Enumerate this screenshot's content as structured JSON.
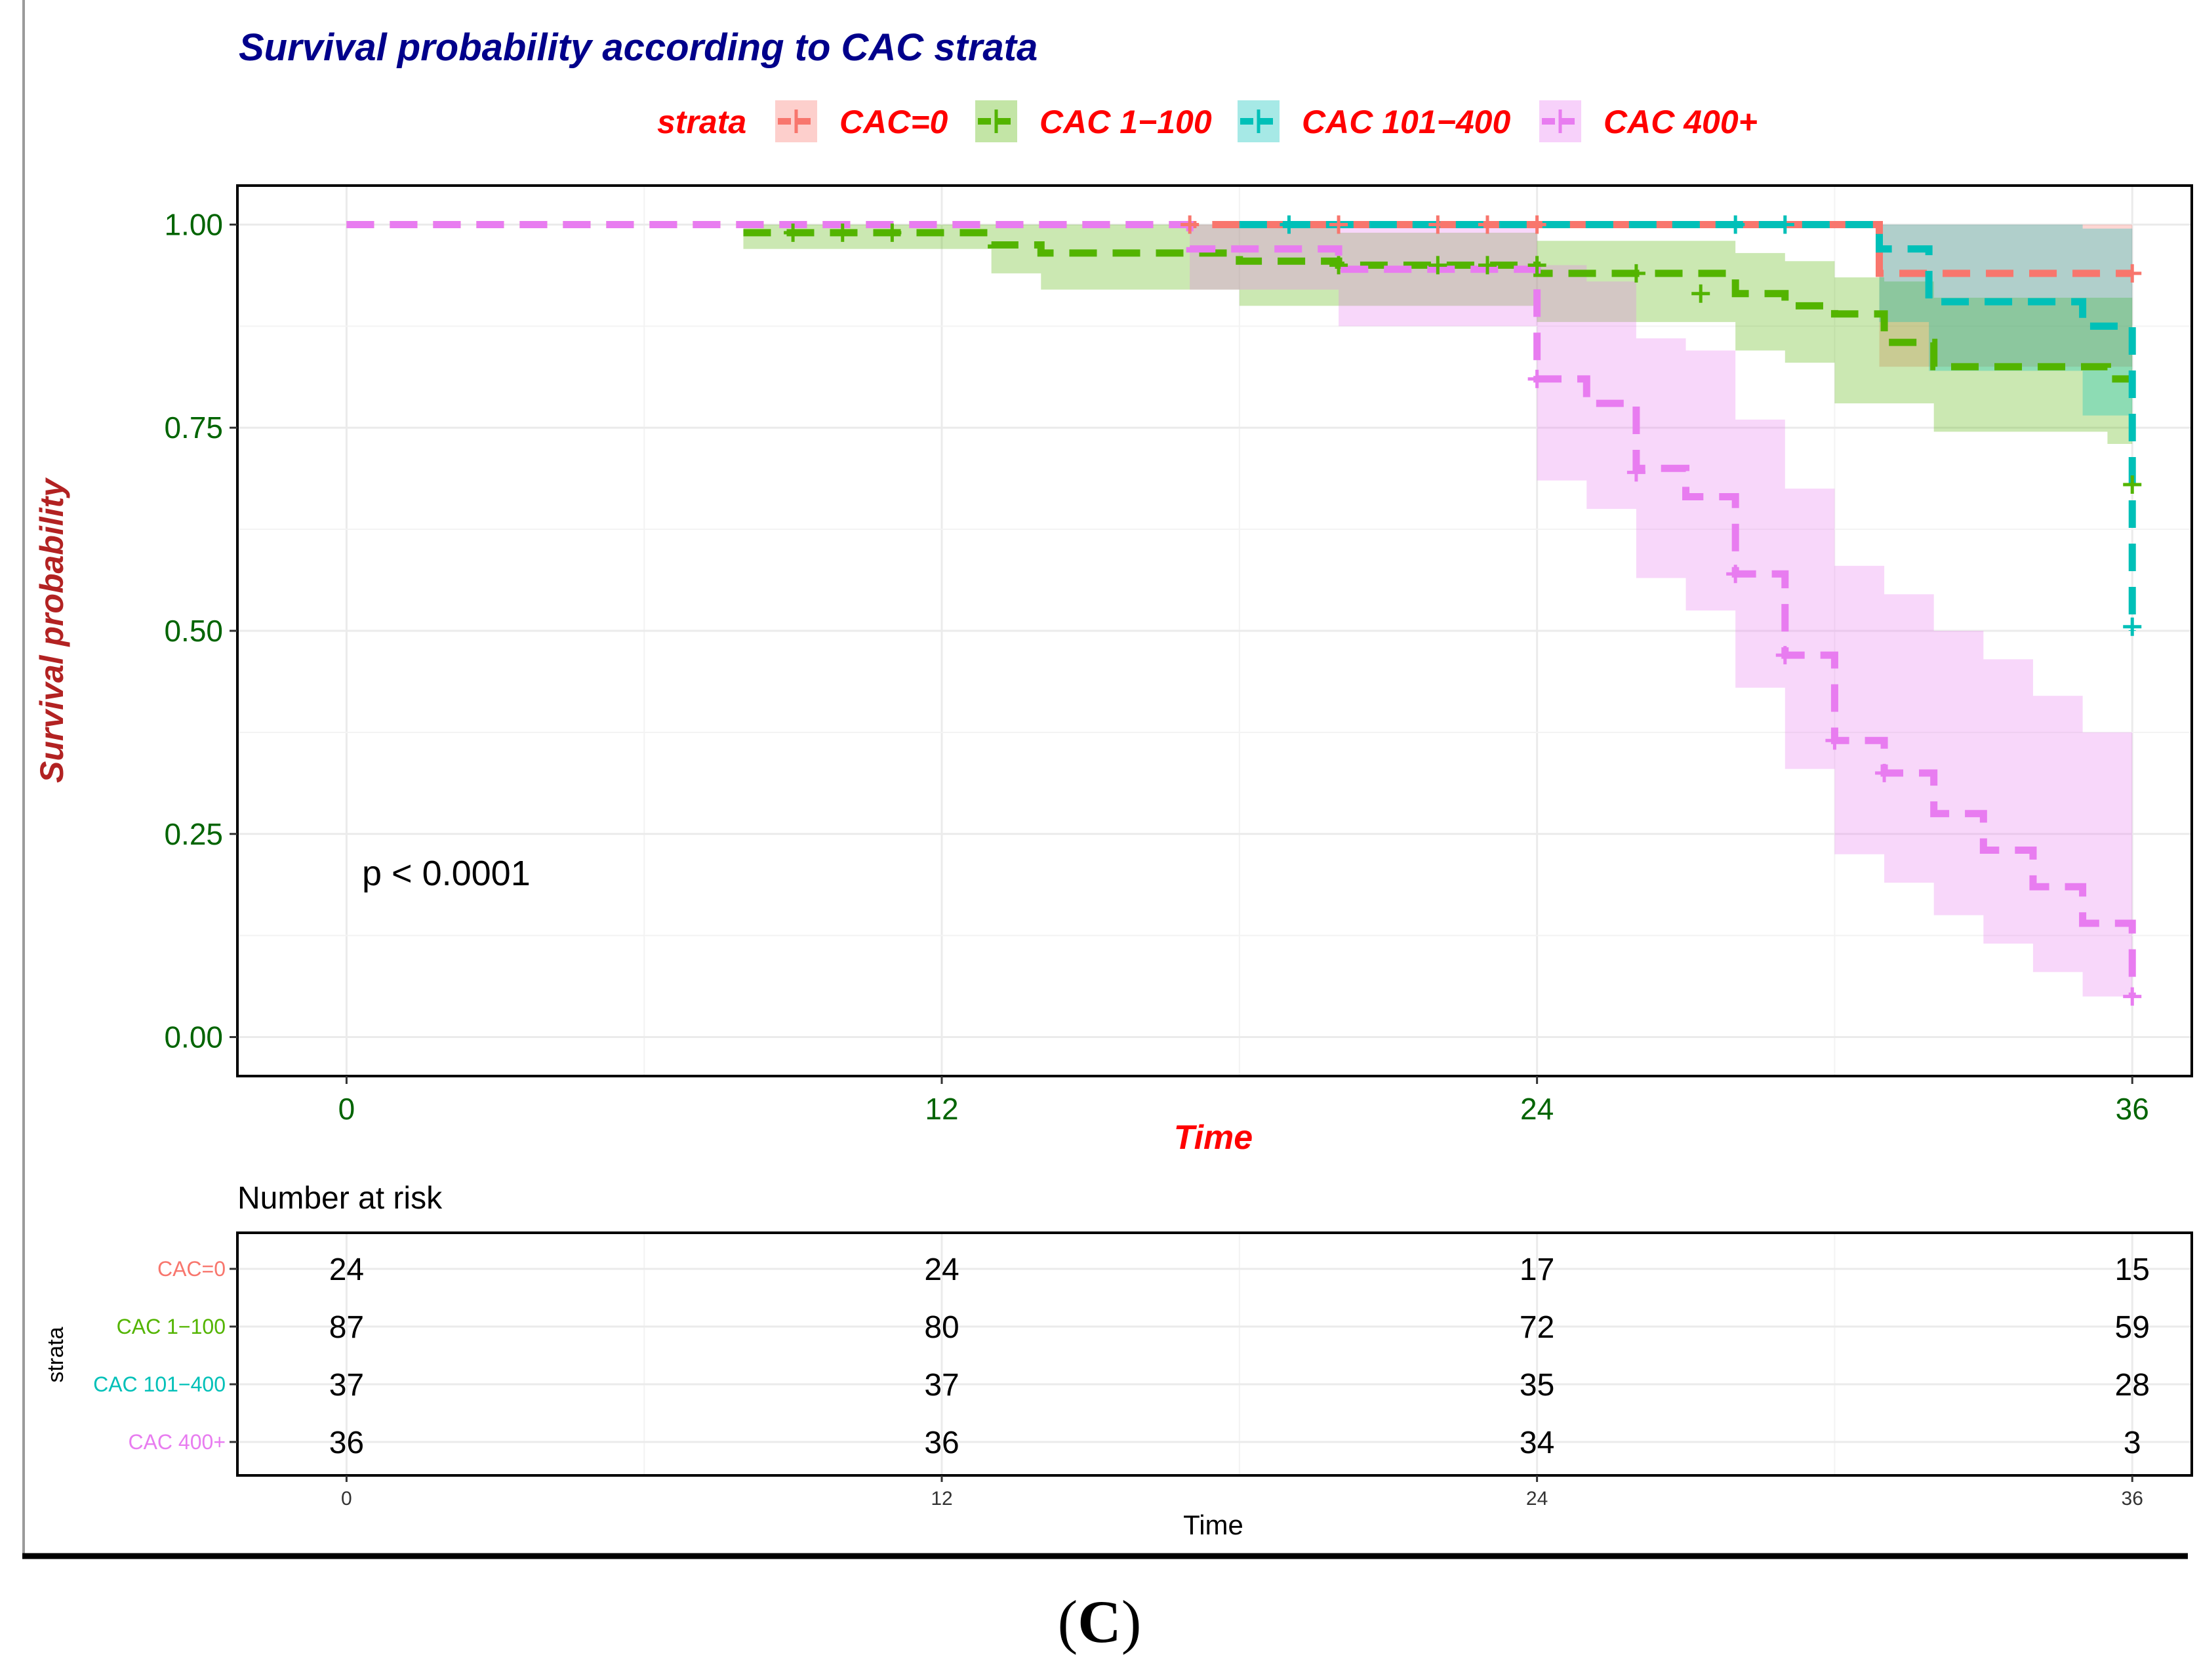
{
  "chart_data": {
    "type": "line",
    "subtype": "kaplan-meier",
    "title": "Survival probability according to CAC strata",
    "xlabel": "Time",
    "ylabel": "Survival probability",
    "xlim": [
      -2.2,
      37.2
    ],
    "ylim": [
      -0.048,
      1.048
    ],
    "xticks": [
      0,
      12,
      24,
      36
    ],
    "yticks": [
      0.0,
      0.25,
      0.5,
      0.75,
      1.0
    ],
    "ytick_labels": [
      "0.00",
      "0.25",
      "0.50",
      "0.75",
      "1.00"
    ],
    "grid": true,
    "legend": {
      "title": "strata",
      "position": "top",
      "entries": [
        "CAC=0",
        "CAC 1−100",
        "CAC 101−400",
        "CAC 400+"
      ]
    },
    "annotation": "p < 0.0001",
    "colors": {
      "title": "#00008b",
      "legend_text": "#ff0000",
      "axis_title_x": "#ff0000",
      "axis_title_y": "#b22222",
      "tick_text": "#006400",
      "grid": "#ebebeb"
    },
    "series": [
      {
        "name": "CAC=0",
        "color": "#f8766d",
        "steps": [
          [
            0,
            1.0
          ],
          [
            30.9,
            0.94
          ],
          [
            36,
            0.94
          ]
        ],
        "ci_steps": [
          [
            0,
            1.0,
            1.0
          ],
          [
            30.9,
            0.825,
            1.0
          ],
          [
            36,
            0.825,
            1.0
          ]
        ],
        "censor": [
          [
            17,
            1.0
          ],
          [
            20,
            1.0
          ],
          [
            22,
            1.0
          ],
          [
            23,
            1.0
          ],
          [
            24,
            1.0
          ],
          [
            36,
            0.94
          ]
        ]
      },
      {
        "name": "CAC 1−100",
        "color": "#53b400",
        "steps": [
          [
            8,
            0.99
          ],
          [
            13,
            0.975
          ],
          [
            14,
            0.965
          ],
          [
            18,
            0.955
          ],
          [
            20,
            0.95
          ],
          [
            24,
            0.94
          ],
          [
            28,
            0.915
          ],
          [
            29,
            0.9
          ],
          [
            30,
            0.89
          ],
          [
            31,
            0.855
          ],
          [
            32,
            0.825
          ],
          [
            35.5,
            0.81
          ],
          [
            36,
            0.81
          ]
        ],
        "ci_steps": [
          [
            8,
            0.97,
            1.0
          ],
          [
            13,
            0.94,
            1.0
          ],
          [
            14,
            0.92,
            1.0
          ],
          [
            18,
            0.9,
            1.0
          ],
          [
            20,
            0.9,
            0.99
          ],
          [
            24,
            0.88,
            0.98
          ],
          [
            28,
            0.845,
            0.965
          ],
          [
            29,
            0.83,
            0.955
          ],
          [
            30,
            0.78,
            0.935
          ],
          [
            31,
            0.78,
            0.93
          ],
          [
            32,
            0.745,
            0.91
          ],
          [
            35.5,
            0.73,
            0.91
          ],
          [
            36,
            0.73,
            0.91
          ]
        ],
        "censor": [
          [
            9,
            0.99
          ],
          [
            10,
            0.99
          ],
          [
            11,
            0.99
          ],
          [
            20,
            0.95
          ],
          [
            22,
            0.95
          ],
          [
            23,
            0.95
          ],
          [
            24,
            0.95
          ],
          [
            26,
            0.94
          ],
          [
            27.3,
            0.915
          ],
          [
            36,
            0.68
          ]
        ]
      },
      {
        "name": "CAC 101−400",
        "color": "#00c0b8",
        "steps": [
          [
            18,
            1.0
          ],
          [
            30.9,
            0.97
          ],
          [
            31.9,
            0.905
          ],
          [
            35,
            0.875
          ],
          [
            36,
            0.5
          ]
        ],
        "ci_steps": [
          [
            18,
            1.0,
            1.0
          ],
          [
            30.9,
            0.88,
            1.0
          ],
          [
            31.9,
            0.82,
            1.0
          ],
          [
            35,
            0.765,
            0.995
          ],
          [
            36,
            0.765,
            0.995
          ]
        ],
        "censor": [
          [
            19,
            1.0
          ],
          [
            28,
            1.0
          ],
          [
            29,
            1.0
          ],
          [
            36,
            0.505
          ]
        ]
      },
      {
        "name": "CAC 400+",
        "color": "#e87cf0",
        "steps": [
          [
            0,
            1.0
          ],
          [
            17,
            0.97
          ],
          [
            20,
            0.945
          ],
          [
            24,
            0.81
          ],
          [
            25,
            0.78
          ],
          [
            26,
            0.7
          ],
          [
            27,
            0.665
          ],
          [
            28,
            0.57
          ],
          [
            29,
            0.47
          ],
          [
            30,
            0.365
          ],
          [
            31,
            0.325
          ],
          [
            32,
            0.275
          ],
          [
            33,
            0.23
          ],
          [
            34,
            0.185
          ],
          [
            35,
            0.14
          ],
          [
            36,
            0.05
          ]
        ],
        "ci_steps": [
          [
            0,
            1.0,
            1.0
          ],
          [
            17,
            0.92,
            1.0
          ],
          [
            20,
            0.875,
            1.0
          ],
          [
            24,
            0.685,
            0.95
          ],
          [
            25,
            0.65,
            0.93
          ],
          [
            26,
            0.565,
            0.86
          ],
          [
            27,
            0.525,
            0.845
          ],
          [
            28,
            0.43,
            0.76
          ],
          [
            29,
            0.33,
            0.675
          ],
          [
            30,
            0.225,
            0.58
          ],
          [
            31,
            0.19,
            0.545
          ],
          [
            32,
            0.15,
            0.5
          ],
          [
            33,
            0.115,
            0.465
          ],
          [
            34,
            0.08,
            0.42
          ],
          [
            35,
            0.05,
            0.375
          ],
          [
            36,
            0.05,
            0.375
          ]
        ],
        "censor": [
          [
            24,
            0.81
          ],
          [
            26,
            0.695
          ],
          [
            28,
            0.57
          ],
          [
            29,
            0.47
          ],
          [
            30,
            0.365
          ],
          [
            31,
            0.325
          ],
          [
            36,
            0.05
          ]
        ]
      }
    ],
    "risk_table": {
      "title": "Number at risk",
      "ylabel": "strata",
      "xlabel": "Time",
      "times": [
        0,
        12,
        24,
        36
      ],
      "rows": [
        {
          "name": "CAC=0",
          "color": "#f8766d",
          "counts": [
            24,
            24,
            17,
            15
          ]
        },
        {
          "name": "CAC 1−100",
          "color": "#53b400",
          "counts": [
            87,
            80,
            72,
            59
          ]
        },
        {
          "name": "CAC 101−400",
          "color": "#00c0b8",
          "counts": [
            37,
            37,
            35,
            28
          ]
        },
        {
          "name": "CAC 400+",
          "color": "#e87cf0",
          "counts": [
            36,
            36,
            34,
            3
          ]
        }
      ]
    }
  },
  "panel_label": "C"
}
